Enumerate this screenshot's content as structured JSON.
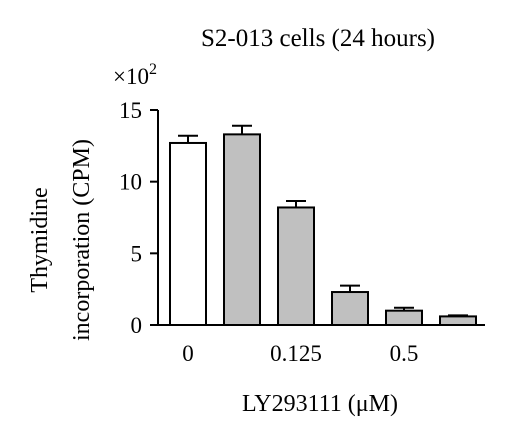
{
  "chart_data": {
    "type": "bar",
    "title": "S2-013 cells (24 hours)",
    "ylabel_lines": [
      "Thymidine",
      "incorporation (CPM)"
    ],
    "xlabel": "LY293111 (μM)",
    "y_multiplier": "×10",
    "y_multiplier_exp": "2",
    "ylim": [
      0,
      15
    ],
    "yticks": [
      0,
      5,
      10,
      15
    ],
    "x_tick_labels": [
      "0",
      "0.125",
      "0.5"
    ],
    "bars": [
      {
        "value": 12.7,
        "error": 0.5,
        "fill": "white"
      },
      {
        "value": 13.3,
        "error": 0.6,
        "fill": "gray"
      },
      {
        "value": 8.2,
        "error": 0.45,
        "fill": "gray"
      },
      {
        "value": 2.3,
        "error": 0.45,
        "fill": "gray"
      },
      {
        "value": 1.0,
        "error": 0.2,
        "fill": "gray"
      },
      {
        "value": 0.6,
        "error": 0.07,
        "fill": "gray"
      }
    ],
    "colors": {
      "white": "#ffffff",
      "gray": "#c0c0c0",
      "stroke": "#000000"
    }
  }
}
